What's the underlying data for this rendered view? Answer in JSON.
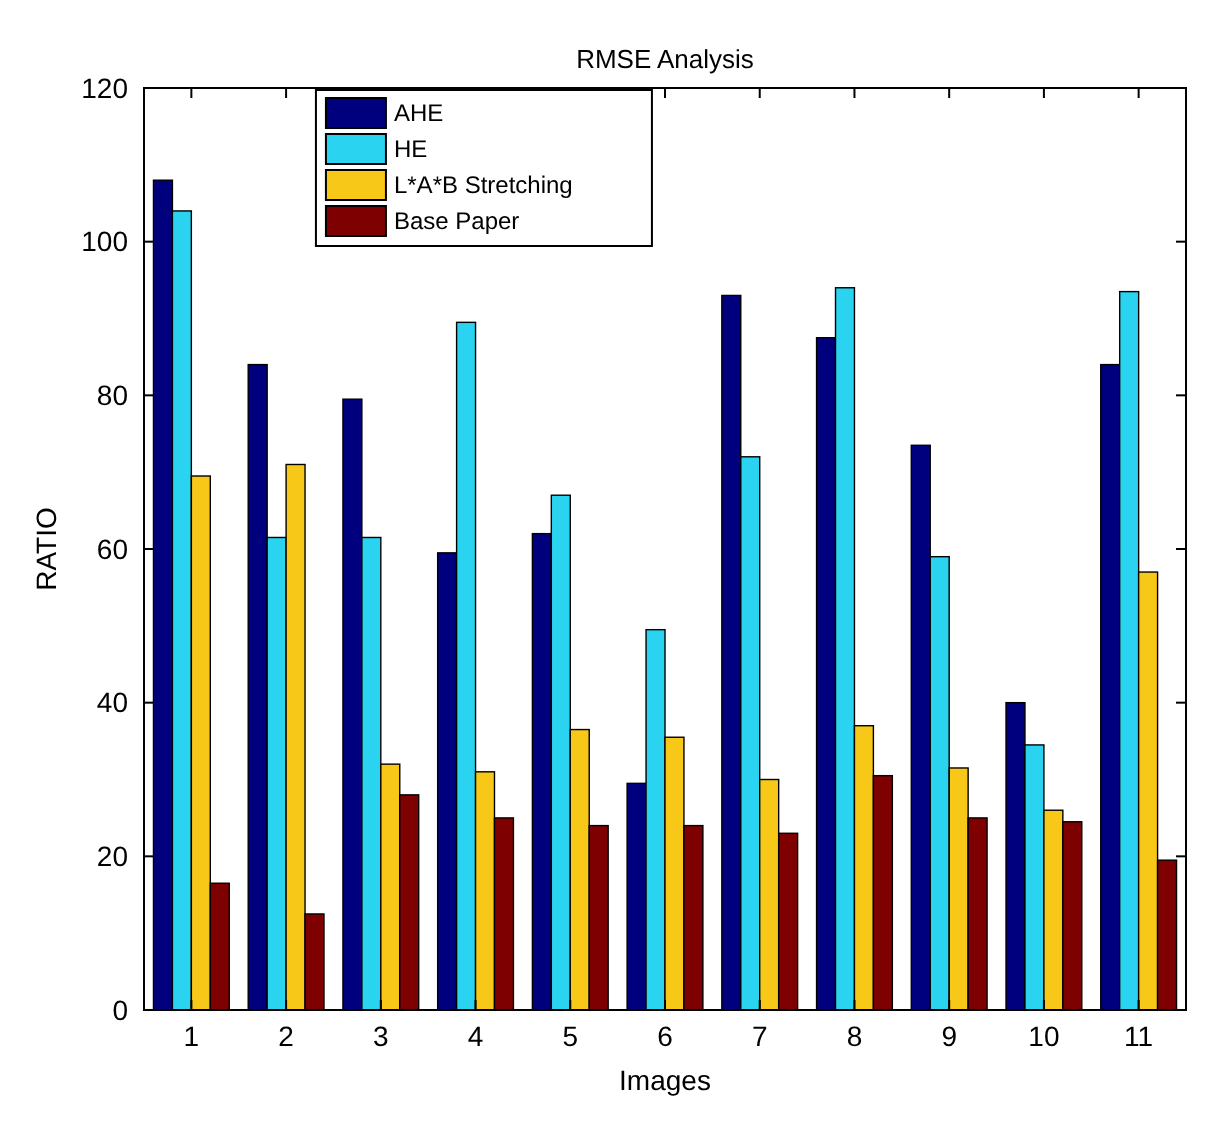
{
  "chart_data": {
    "type": "bar",
    "title": "RMSE Analysis",
    "xlabel": "Images",
    "ylabel": "RATIO",
    "categories": [
      "1",
      "2",
      "3",
      "4",
      "5",
      "6",
      "7",
      "8",
      "9",
      "10",
      "11"
    ],
    "series": [
      {
        "name": "AHE",
        "color": "#00007f",
        "values": [
          108,
          84,
          79.5,
          59.5,
          62,
          29.5,
          93,
          87.5,
          73.5,
          40,
          84
        ]
      },
      {
        "name": "HE",
        "color": "#2ad4f0",
        "values": [
          104,
          61.5,
          61.5,
          89.5,
          67,
          49.5,
          72,
          94,
          59,
          34.5,
          93.5
        ]
      },
      {
        "name": "L*A*B Stretching",
        "color": "#f8c818",
        "values": [
          69.5,
          71,
          32,
          31,
          36.5,
          35.5,
          30,
          37,
          31.5,
          26,
          57
        ]
      },
      {
        "name": "Base Paper",
        "color": "#7f0000",
        "values": [
          16.5,
          12.5,
          28,
          25,
          24,
          24,
          23,
          30.5,
          25,
          24.5,
          19.5
        ]
      }
    ],
    "ylim": [
      0,
      120
    ],
    "yticks": [
      0,
      20,
      40,
      60,
      80,
      100,
      120
    ],
    "grid": false,
    "legend": "top left"
  }
}
